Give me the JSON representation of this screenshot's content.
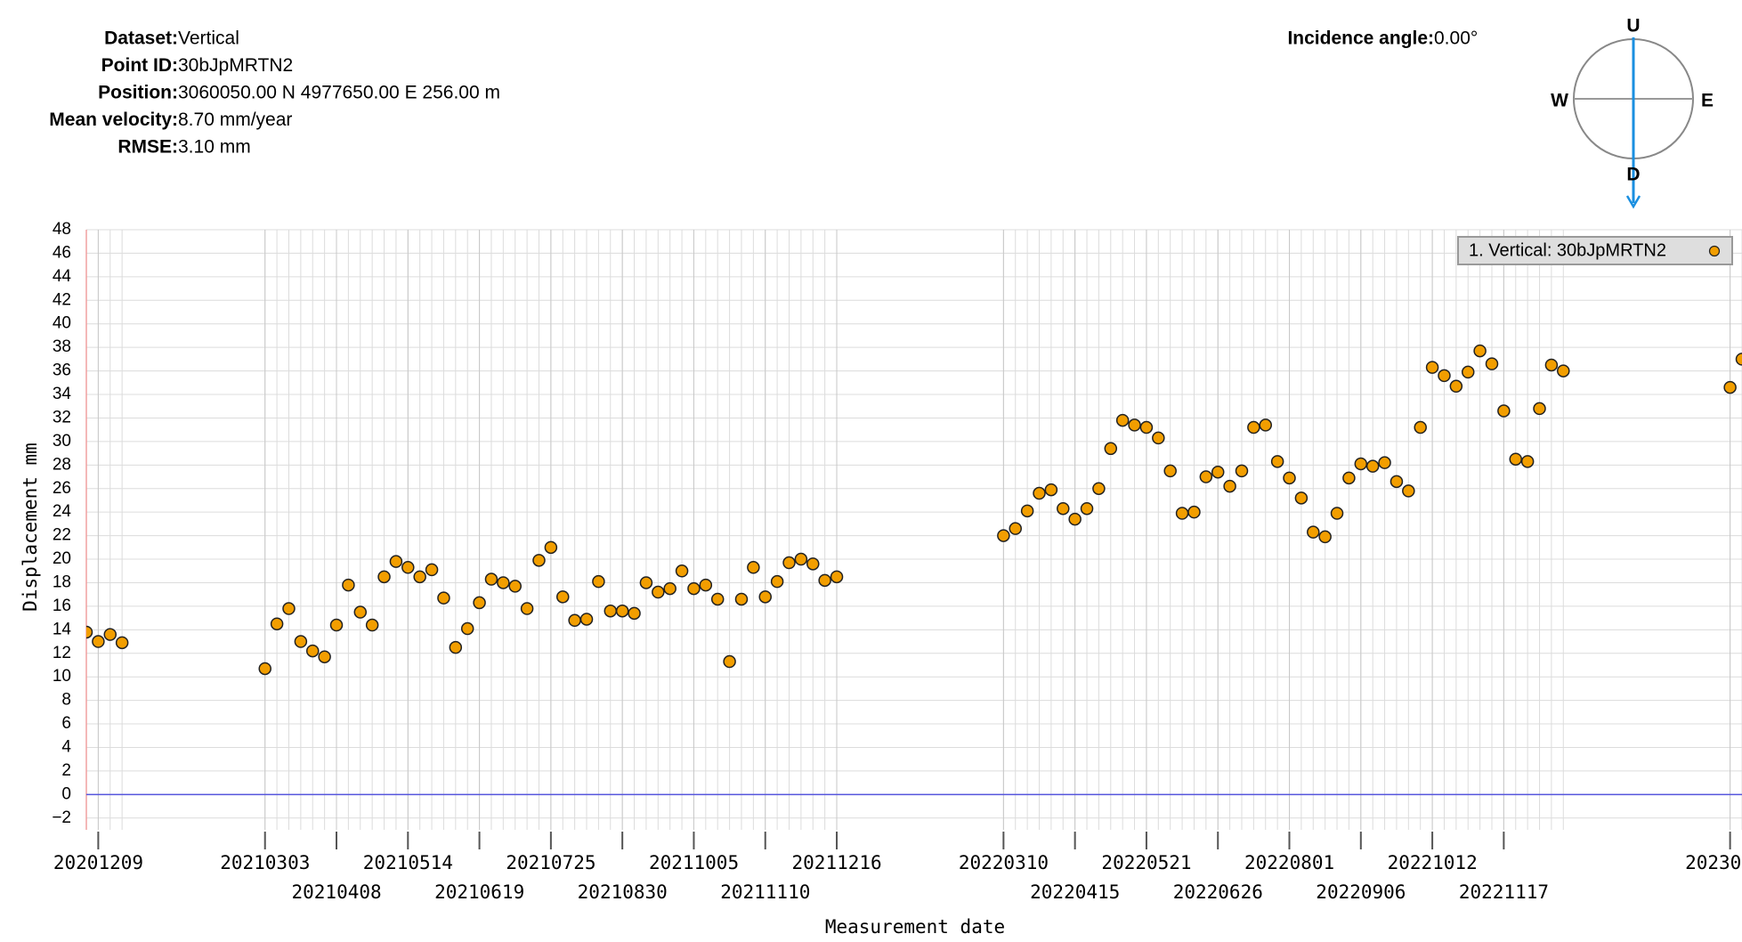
{
  "header": {
    "info": [
      {
        "label": "Dataset:",
        "value": "Vertical"
      },
      {
        "label": "Point ID:",
        "value": "30bJpMRTN2"
      },
      {
        "label": "Position:",
        "value": "3060050.00 N 4977650.00 E 256.00 m"
      },
      {
        "label": "Mean velocity:",
        "value": "8.70 mm/year"
      },
      {
        "label": "RMSE:",
        "value": "3.10 mm"
      }
    ],
    "incidence": {
      "label": "Incidence angle:",
      "value": "0.00°"
    },
    "compass": {
      "up": "U",
      "down": "D",
      "west": "W",
      "east": "E"
    }
  },
  "chart_data": {
    "type": "scatter",
    "x_label": "Measurement date",
    "y_label": "Displacement mm",
    "xlim": [
      "2020-12-03",
      "2023-03-17"
    ],
    "ylim": [
      -3,
      48
    ],
    "xticks": [
      {
        "value": "2020-12-09",
        "label": "20201209"
      },
      {
        "value": "2021-03-03",
        "label": "20210303"
      },
      {
        "value": "2021-04-08",
        "label": "20210408"
      },
      {
        "value": "2021-05-14",
        "label": "20210514"
      },
      {
        "value": "2021-06-19",
        "label": "20210619"
      },
      {
        "value": "2021-07-25",
        "label": "20210725"
      },
      {
        "value": "2021-08-30",
        "label": "20210830"
      },
      {
        "value": "2021-10-05",
        "label": "20211005"
      },
      {
        "value": "2021-11-10",
        "label": "20211110"
      },
      {
        "value": "2021-12-16",
        "label": "20211216"
      },
      {
        "value": "2022-03-10",
        "label": "20220310"
      },
      {
        "value": "2022-04-15",
        "label": "20220415"
      },
      {
        "value": "2022-05-21",
        "label": "20220521"
      },
      {
        "value": "2022-06-26",
        "label": "20220626"
      },
      {
        "value": "2022-08-01",
        "label": "20220801"
      },
      {
        "value": "2022-09-06",
        "label": "20220906"
      },
      {
        "value": "2022-10-12",
        "label": "20221012"
      },
      {
        "value": "2022-11-17",
        "label": "20221117"
      },
      {
        "value": "2023-03-11",
        "label": "20230"
      }
    ],
    "yticks": [
      {
        "value": -2,
        "label": "−2"
      },
      0,
      2,
      4,
      6,
      8,
      10,
      12,
      14,
      16,
      18,
      20,
      22,
      24,
      26,
      28,
      30,
      32,
      34,
      36,
      38,
      40,
      42,
      44,
      46,
      48
    ],
    "grid": true,
    "legend": "upper right",
    "series": [
      {
        "name": "1. Vertical: 30bJpMRTN2",
        "color": "#f29e00",
        "x": [
          "2020-12-03",
          "2020-12-09",
          "2020-12-15",
          "2020-12-21",
          "2021-03-03",
          "2021-03-09",
          "2021-03-15",
          "2021-03-21",
          "2021-03-27",
          "2021-04-02",
          "2021-04-08",
          "2021-04-14",
          "2021-04-20",
          "2021-04-26",
          "2021-05-02",
          "2021-05-08",
          "2021-05-14",
          "2021-05-20",
          "2021-05-26",
          "2021-06-01",
          "2021-06-07",
          "2021-06-13",
          "2021-06-19",
          "2021-06-25",
          "2021-07-01",
          "2021-07-07",
          "2021-07-13",
          "2021-07-19",
          "2021-07-25",
          "2021-07-31",
          "2021-08-06",
          "2021-08-12",
          "2021-08-18",
          "2021-08-24",
          "2021-08-30",
          "2021-09-05",
          "2021-09-11",
          "2021-09-17",
          "2021-09-23",
          "2021-09-29",
          "2021-10-05",
          "2021-10-11",
          "2021-10-17",
          "2021-10-23",
          "2021-10-29",
          "2021-11-04",
          "2021-11-10",
          "2021-11-16",
          "2021-11-22",
          "2021-11-28",
          "2021-12-04",
          "2021-12-10",
          "2021-12-16",
          "2022-03-10",
          "2022-03-16",
          "2022-03-22",
          "2022-03-28",
          "2022-04-03",
          "2022-04-09",
          "2022-04-15",
          "2022-04-21",
          "2022-04-27",
          "2022-05-03",
          "2022-05-09",
          "2022-05-15",
          "2022-05-21",
          "2022-05-27",
          "2022-06-02",
          "2022-06-08",
          "2022-06-14",
          "2022-06-20",
          "2022-06-26",
          "2022-07-02",
          "2022-07-08",
          "2022-07-14",
          "2022-07-20",
          "2022-07-26",
          "2022-08-01",
          "2022-08-07",
          "2022-08-13",
          "2022-08-19",
          "2022-08-25",
          "2022-08-31",
          "2022-09-06",
          "2022-09-12",
          "2022-09-18",
          "2022-09-24",
          "2022-09-30",
          "2022-10-06",
          "2022-10-12",
          "2022-10-18",
          "2022-10-24",
          "2022-10-30",
          "2022-11-05",
          "2022-11-11",
          "2022-11-17",
          "2022-11-23",
          "2022-11-29",
          "2022-12-05",
          "2022-12-11",
          "2022-12-17",
          "2023-03-11",
          "2023-03-17"
        ],
        "values": [
          13.8,
          13.0,
          13.6,
          12.9,
          10.7,
          14.5,
          15.8,
          13.0,
          12.2,
          11.7,
          14.4,
          17.8,
          15.5,
          14.4,
          18.5,
          19.8,
          19.3,
          18.5,
          19.1,
          16.7,
          12.5,
          14.1,
          16.3,
          18.3,
          18.0,
          17.7,
          15.8,
          19.9,
          21.0,
          16.8,
          14.8,
          14.9,
          18.1,
          15.6,
          15.6,
          15.4,
          18.0,
          17.2,
          17.5,
          19.0,
          17.5,
          17.8,
          16.6,
          11.3,
          16.6,
          19.3,
          16.8,
          18.1,
          19.7,
          20.0,
          19.6,
          18.2,
          18.5,
          22.0,
          22.6,
          24.1,
          25.6,
          25.9,
          24.3,
          23.4,
          24.3,
          26.0,
          29.4,
          31.8,
          31.4,
          31.2,
          30.3,
          27.5,
          23.9,
          24.0,
          27.0,
          27.4,
          26.2,
          27.5,
          31.2,
          31.4,
          28.3,
          26.9,
          25.2,
          22.3,
          21.9,
          23.9,
          26.9,
          28.1,
          27.9,
          28.2,
          26.6,
          25.8,
          31.2,
          36.3,
          35.6,
          34.7,
          35.9,
          37.7,
          36.6,
          32.6,
          28.5,
          28.3,
          32.8,
          36.5,
          36.0,
          34.6,
          37.0
        ]
      }
    ]
  }
}
